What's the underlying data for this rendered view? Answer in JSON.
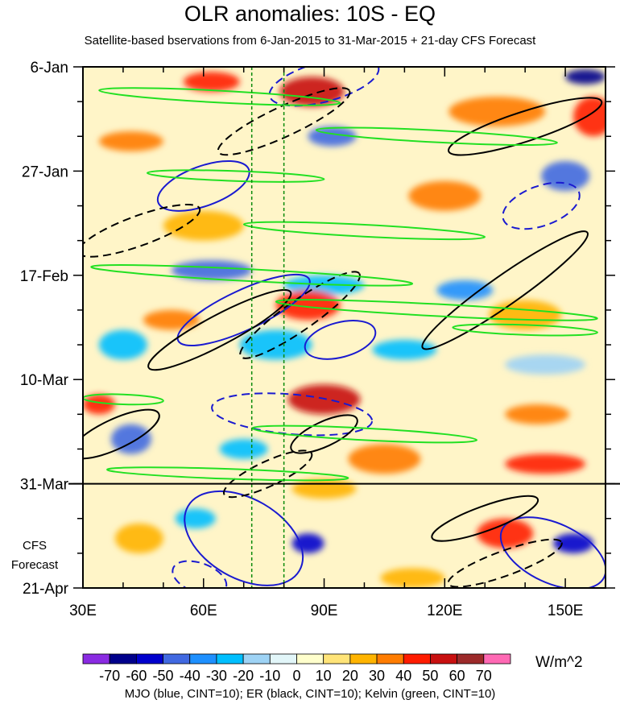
{
  "title": "OLR anomalies: 10S - EQ",
  "subtitle": "Satellite-based bservations from 6-Jan-2015 to 31-Mar-2015 + 21-day CFS Forecast",
  "cfs_label": [
    "CFS",
    "Forecast"
  ],
  "units": "W/m^2",
  "caption": "MJO (blue, CINT=10); ER (black, CINT=10); Kelvin (green, CINT=10)",
  "chart_data": {
    "type": "heatmap",
    "title": "OLR anomalies: 10S - EQ",
    "subtitle": "Satellite-based bservations from 6-Jan-2015 to 31-Mar-2015 + 21-day CFS Forecast",
    "x_axis": {
      "range_deg_east": [
        30,
        160
      ],
      "ticks": [
        {
          "value": 30,
          "label": "30E"
        },
        {
          "value": 60,
          "label": "60E"
        },
        {
          "value": 90,
          "label": "90E"
        },
        {
          "value": 120,
          "label": "120E"
        },
        {
          "value": 150,
          "label": "150E"
        }
      ]
    },
    "y_axis": {
      "range_days_from_start": [
        0,
        105
      ],
      "reversed": true,
      "ticks": [
        {
          "value": 0,
          "label": "6-Jan"
        },
        {
          "value": 21,
          "label": "27-Jan"
        },
        {
          "value": 42,
          "label": "17-Feb"
        },
        {
          "value": 63,
          "label": "10-Mar"
        },
        {
          "value": 84,
          "label": "31-Mar"
        },
        {
          "value": 105,
          "label": "21-Apr"
        }
      ]
    },
    "forecast_start_day": 84,
    "reference_longitudes": [
      72,
      80
    ],
    "colorbar": {
      "units": "W/m^2",
      "labels": [
        "-70",
        "-60",
        "-50",
        "-40",
        "-30",
        "-20",
        "-10",
        "0",
        "10",
        "20",
        "30",
        "40",
        "50",
        "60",
        "70"
      ],
      "colors": [
        "#8a2be2",
        "#00008b",
        "#0000cd",
        "#4169e1",
        "#1e90ff",
        "#00bfff",
        "#9ed3f5",
        "#e2f6f9",
        "#ffffcc",
        "#ffe478",
        "#ffb400",
        "#ff7c00",
        "#ff1c00",
        "#c81010",
        "#9c2a2a",
        "#ff69b4"
      ]
    },
    "anomaly_blobs": [
      {
        "lon": 62,
        "day": 3,
        "value": 40,
        "rx": 7,
        "ry": 2
      },
      {
        "lon": 87,
        "day": 5,
        "value": 50,
        "rx": 8,
        "ry": 3
      },
      {
        "lon": 92,
        "day": 14,
        "value": -50,
        "rx": 6,
        "ry": 2
      },
      {
        "lon": 133,
        "day": 9,
        "value": 30,
        "rx": 12,
        "ry": 3
      },
      {
        "lon": 155,
        "day": 2,
        "value": -70,
        "rx": 5,
        "ry": 1.5
      },
      {
        "lon": 157,
        "day": 10,
        "value": 40,
        "rx": 5,
        "ry": 4
      },
      {
        "lon": 42,
        "day": 15,
        "value": 30,
        "rx": 8,
        "ry": 2
      },
      {
        "lon": 150,
        "day": 22,
        "value": -50,
        "rx": 6,
        "ry": 3
      },
      {
        "lon": 120,
        "day": 26,
        "value": 30,
        "rx": 9,
        "ry": 3
      },
      {
        "lon": 60,
        "day": 32,
        "value": 20,
        "rx": 10,
        "ry": 3
      },
      {
        "lon": 62,
        "day": 41,
        "value": -50,
        "rx": 10,
        "ry": 2
      },
      {
        "lon": 90,
        "day": 44,
        "value": -30,
        "rx": 10,
        "ry": 2
      },
      {
        "lon": 125,
        "day": 45,
        "value": -40,
        "rx": 7,
        "ry": 2
      },
      {
        "lon": 86,
        "day": 48,
        "value": 40,
        "rx": 8,
        "ry": 3
      },
      {
        "lon": 52,
        "day": 51,
        "value": 30,
        "rx": 7,
        "ry": 2
      },
      {
        "lon": 140,
        "day": 50,
        "value": 20,
        "rx": 9,
        "ry": 3
      },
      {
        "lon": 78,
        "day": 56,
        "value": -30,
        "rx": 9,
        "ry": 3
      },
      {
        "lon": 40,
        "day": 56,
        "value": -30,
        "rx": 6,
        "ry": 3
      },
      {
        "lon": 110,
        "day": 57,
        "value": -30,
        "rx": 8,
        "ry": 2
      },
      {
        "lon": 145,
        "day": 60,
        "value": -20,
        "rx": 10,
        "ry": 2
      },
      {
        "lon": 90,
        "day": 67,
        "value": 50,
        "rx": 9,
        "ry": 3
      },
      {
        "lon": 34,
        "day": 68,
        "value": 40,
        "rx": 4,
        "ry": 2
      },
      {
        "lon": 143,
        "day": 70,
        "value": 30,
        "rx": 8,
        "ry": 2
      },
      {
        "lon": 42,
        "day": 75,
        "value": -50,
        "rx": 5,
        "ry": 3
      },
      {
        "lon": 70,
        "day": 77,
        "value": -30,
        "rx": 6,
        "ry": 2
      },
      {
        "lon": 145,
        "day": 80,
        "value": 40,
        "rx": 10,
        "ry": 2
      },
      {
        "lon": 105,
        "day": 79,
        "value": 30,
        "rx": 9,
        "ry": 3
      },
      {
        "lon": 90,
        "day": 85,
        "value": 20,
        "rx": 8,
        "ry": 2
      },
      {
        "lon": 58,
        "day": 91,
        "value": -30,
        "rx": 5,
        "ry": 2
      },
      {
        "lon": 86,
        "day": 96,
        "value": -60,
        "rx": 4,
        "ry": 2
      },
      {
        "lon": 135,
        "day": 94,
        "value": 40,
        "rx": 7,
        "ry": 3
      },
      {
        "lon": 152,
        "day": 96,
        "value": -60,
        "rx": 5,
        "ry": 2
      },
      {
        "lon": 44,
        "day": 95,
        "value": 20,
        "rx": 6,
        "ry": 3
      },
      {
        "lon": 112,
        "day": 103,
        "value": 20,
        "rx": 8,
        "ry": 2
      }
    ],
    "contours": [
      {
        "wave": "MJO",
        "color": "blue",
        "style": "solid",
        "lon": 60,
        "day": 24,
        "rx": 12,
        "ry": 4,
        "rot": -20
      },
      {
        "wave": "MJO",
        "color": "blue",
        "style": "solid",
        "lon": 94,
        "day": 55,
        "rx": 9,
        "ry": 3.5,
        "rot": -15
      },
      {
        "wave": "MJO",
        "color": "blue",
        "style": "solid",
        "lon": 70,
        "day": 49,
        "rx": 18,
        "ry": 4,
        "rot": -25
      },
      {
        "wave": "MJO",
        "color": "blue",
        "style": "solid",
        "lon": 70,
        "day": 95,
        "rx": 16,
        "ry": 8,
        "rot": 30
      },
      {
        "wave": "MJO",
        "color": "blue",
        "style": "solid",
        "lon": 147,
        "day": 98,
        "rx": 14,
        "ry": 6,
        "rot": 25
      },
      {
        "wave": "MJO",
        "color": "blue",
        "style": "dashed",
        "lon": 90,
        "day": 3,
        "rx": 14,
        "ry": 4,
        "rot": -15
      },
      {
        "wave": "MJO",
        "color": "blue",
        "style": "dashed",
        "lon": 144,
        "day": 28,
        "rx": 10,
        "ry": 4,
        "rot": -20
      },
      {
        "wave": "MJO",
        "color": "blue",
        "style": "dashed",
        "lon": 82,
        "day": 70,
        "rx": 20,
        "ry": 4,
        "rot": 5
      },
      {
        "wave": "MJO",
        "color": "blue",
        "style": "dashed",
        "lon": 59,
        "day": 103,
        "rx": 7,
        "ry": 3,
        "rot": 20
      },
      {
        "wave": "ER",
        "color": "black",
        "style": "solid",
        "lon": 140,
        "day": 12,
        "rx": 20,
        "ry": 3,
        "rot": -18
      },
      {
        "wave": "ER",
        "color": "black",
        "style": "solid",
        "lon": 64,
        "day": 53,
        "rx": 20,
        "ry": 3,
        "rot": -28
      },
      {
        "wave": "ER",
        "color": "black",
        "style": "solid",
        "lon": 135,
        "day": 45,
        "rx": 25,
        "ry": 3,
        "rot": -35
      },
      {
        "wave": "ER",
        "color": "black",
        "style": "solid",
        "lon": 90,
        "day": 74,
        "rx": 9,
        "ry": 2.5,
        "rot": -25
      },
      {
        "wave": "ER",
        "color": "black",
        "style": "solid",
        "lon": 38,
        "day": 74,
        "rx": 12,
        "ry": 3,
        "rot": -25
      },
      {
        "wave": "ER",
        "color": "black",
        "style": "solid",
        "lon": 130,
        "day": 91,
        "rx": 14,
        "ry": 2.5,
        "rot": -20
      },
      {
        "wave": "ER",
        "color": "black",
        "style": "dashed",
        "lon": 80,
        "day": 11,
        "rx": 18,
        "ry": 3,
        "rot": -25
      },
      {
        "wave": "ER",
        "color": "black",
        "style": "dashed",
        "lon": 44,
        "day": 33,
        "rx": 16,
        "ry": 3,
        "rot": -20
      },
      {
        "wave": "ER",
        "color": "black",
        "style": "dashed",
        "lon": 84,
        "day": 50,
        "rx": 18,
        "ry": 3,
        "rot": -35
      },
      {
        "wave": "ER",
        "color": "black",
        "style": "dashed",
        "lon": 76,
        "day": 82,
        "rx": 12,
        "ry": 2.5,
        "rot": -25
      },
      {
        "wave": "ER",
        "color": "black",
        "style": "dashed",
        "lon": 135,
        "day": 100,
        "rx": 15,
        "ry": 2.5,
        "rot": -20
      },
      {
        "wave": "Kelvin",
        "color": "green",
        "style": "solid",
        "lon": 64,
        "day": 6,
        "rx": 30,
        "ry": 1.2,
        "rot": 3
      },
      {
        "wave": "Kelvin",
        "color": "green",
        "style": "solid",
        "lon": 118,
        "day": 14,
        "rx": 30,
        "ry": 1.2,
        "rot": 3
      },
      {
        "wave": "Kelvin",
        "color": "green",
        "style": "solid",
        "lon": 68,
        "day": 22,
        "rx": 22,
        "ry": 1,
        "rot": 2
      },
      {
        "wave": "Kelvin",
        "color": "green",
        "style": "solid",
        "lon": 100,
        "day": 33,
        "rx": 30,
        "ry": 1.2,
        "rot": 3
      },
      {
        "wave": "Kelvin",
        "color": "green",
        "style": "solid",
        "lon": 72,
        "day": 42,
        "rx": 40,
        "ry": 1.2,
        "rot": 3
      },
      {
        "wave": "Kelvin",
        "color": "green",
        "style": "solid",
        "lon": 118,
        "day": 49,
        "rx": 40,
        "ry": 1.2,
        "rot": 3
      },
      {
        "wave": "Kelvin",
        "color": "green",
        "style": "solid",
        "lon": 140,
        "day": 53,
        "rx": 18,
        "ry": 1,
        "rot": 2
      },
      {
        "wave": "Kelvin",
        "color": "green",
        "style": "solid",
        "lon": 40,
        "day": 67,
        "rx": 10,
        "ry": 1,
        "rot": 2
      },
      {
        "wave": "Kelvin",
        "color": "green",
        "style": "solid",
        "lon": 100,
        "day": 74,
        "rx": 28,
        "ry": 1.2,
        "rot": 3
      },
      {
        "wave": "Kelvin",
        "color": "green",
        "style": "solid",
        "lon": 66,
        "day": 82,
        "rx": 30,
        "ry": 1,
        "rot": 2
      }
    ]
  }
}
